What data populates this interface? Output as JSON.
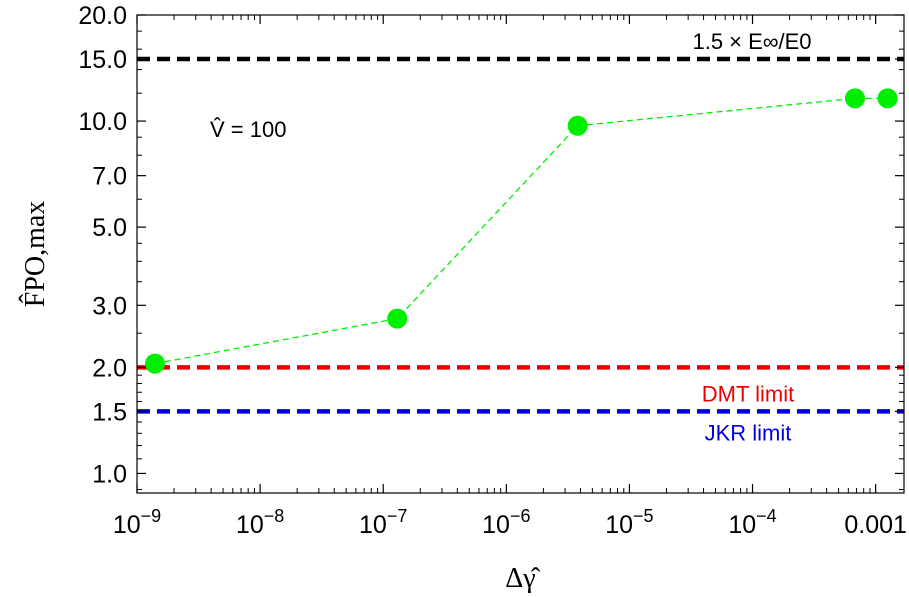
{
  "chart_data": {
    "type": "line",
    "xscale": "log",
    "yscale": "log",
    "xlim": [
      1e-09,
      0.0017
    ],
    "ylim": [
      0.88,
      20.0
    ],
    "xlabel": "Δγ̂",
    "ylabel": "F̂PO,max",
    "x_ticks": [
      {
        "value": 1e-09,
        "label": "10",
        "exp": "−9"
      },
      {
        "value": 1e-08,
        "label": "10",
        "exp": "−8"
      },
      {
        "value": 1e-07,
        "label": "10",
        "exp": "−7"
      },
      {
        "value": 1e-06,
        "label": "10",
        "exp": "−6"
      },
      {
        "value": 1e-05,
        "label": "10",
        "exp": "−5"
      },
      {
        "value": 0.0001,
        "label": "10",
        "exp": "−4"
      },
      {
        "value": 0.001,
        "label": "0.001",
        "exp": ""
      }
    ],
    "y_ticks": [
      {
        "value": 1.0,
        "label": "1.0"
      },
      {
        "value": 1.5,
        "label": "1.5"
      },
      {
        "value": 2.0,
        "label": "2.0"
      },
      {
        "value": 3.0,
        "label": "3.0"
      },
      {
        "value": 5.0,
        "label": "5.0"
      },
      {
        "value": 7.0,
        "label": "7.0"
      },
      {
        "value": 10.0,
        "label": "10.0"
      },
      {
        "value": 15.0,
        "label": "15.0"
      },
      {
        "value": 20.0,
        "label": "20.0"
      }
    ],
    "series": [
      {
        "color": "#00ee00",
        "x": [
          1.4e-09,
          1.3e-07,
          3.8e-06,
          0.00068,
          0.00125
        ],
        "y": [
          2.05,
          2.75,
          9.7,
          11.6,
          11.6
        ]
      }
    ],
    "reference_lines": [
      {
        "name": "1.5 × E∞/E0",
        "y": 15.0,
        "color": "#000000"
      },
      {
        "name": "DMT limit",
        "y": 2.0,
        "color": "#ee0000"
      },
      {
        "name": "JKR limit",
        "y": 1.5,
        "color": "#0000dd"
      }
    ],
    "annotations": [
      {
        "text": "V̂ = 100"
      }
    ]
  }
}
